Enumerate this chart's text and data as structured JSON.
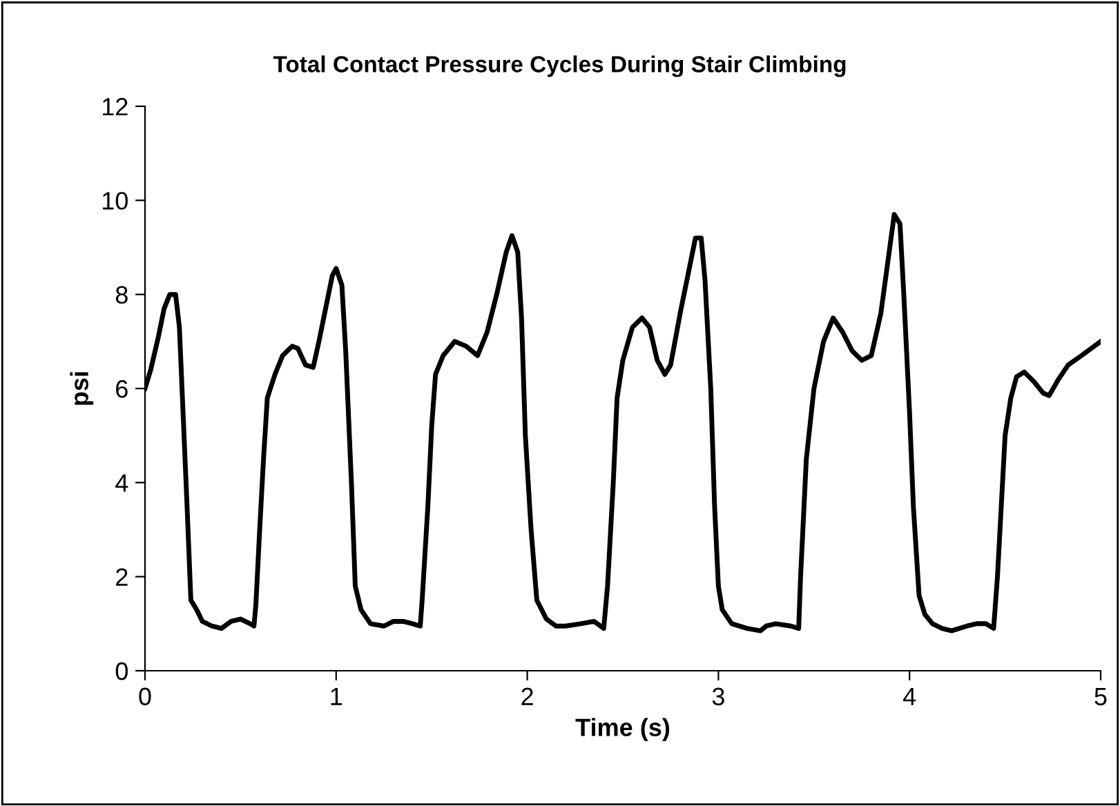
{
  "chart_data": {
    "type": "line",
    "title": "Total Contact Pressure Cycles During Stair Climbing",
    "xlabel": "Time (s)",
    "ylabel": "psi",
    "xlim": [
      0,
      5
    ],
    "xticks": [
      0,
      1,
      2,
      3,
      4,
      5
    ],
    "ylim": [
      0,
      12
    ],
    "yticks": [
      0,
      2,
      4,
      6,
      8,
      10,
      12
    ],
    "grid": false,
    "marker": "none",
    "line_style": "solid",
    "series": [
      {
        "color": "#000000",
        "x": [
          0,
          0.03,
          0.07,
          0.1,
          0.13,
          0.16,
          0.18,
          0.2,
          0.22,
          0.24,
          0.27,
          0.3,
          0.35,
          0.4,
          0.45,
          0.5,
          0.55,
          0.57,
          0.58,
          0.6,
          0.62,
          0.64,
          0.68,
          0.72,
          0.77,
          0.8,
          0.84,
          0.88,
          0.91,
          0.95,
          0.98,
          1.0,
          1.03,
          1.05,
          1.08,
          1.1,
          1.13,
          1.18,
          1.25,
          1.3,
          1.35,
          1.4,
          1.44,
          1.45,
          1.48,
          1.5,
          1.52,
          1.56,
          1.62,
          1.68,
          1.74,
          1.79,
          1.84,
          1.89,
          1.92,
          1.95,
          1.97,
          1.99,
          2.02,
          2.05,
          2.1,
          2.15,
          2.2,
          2.28,
          2.35,
          2.4,
          2.42,
          2.45,
          2.47,
          2.5,
          2.55,
          2.6,
          2.64,
          2.68,
          2.72,
          2.75,
          2.8,
          2.85,
          2.88,
          2.91,
          2.93,
          2.96,
          2.98,
          3.0,
          3.02,
          3.07,
          3.15,
          3.22,
          3.25,
          3.3,
          3.38,
          3.42,
          3.43,
          3.46,
          3.5,
          3.55,
          3.6,
          3.65,
          3.7,
          3.75,
          3.8,
          3.85,
          3.9,
          3.92,
          3.95,
          3.97,
          4.0,
          4.02,
          4.05,
          4.08,
          4.12,
          4.17,
          4.22,
          4.3,
          4.35,
          4.4,
          4.44,
          4.46,
          4.48,
          4.5,
          4.53,
          4.56,
          4.6,
          4.65,
          4.7,
          4.73,
          4.78,
          4.83,
          4.9,
          4.95,
          5.0
        ],
        "values": [
          6.0,
          6.4,
          7.1,
          7.7,
          8.0,
          8.0,
          7.3,
          5.4,
          3.5,
          1.5,
          1.3,
          1.05,
          0.95,
          0.9,
          1.05,
          1.1,
          1.0,
          0.95,
          1.4,
          3.0,
          4.5,
          5.8,
          6.3,
          6.7,
          6.9,
          6.85,
          6.5,
          6.45,
          7.0,
          7.8,
          8.4,
          8.55,
          8.2,
          6.8,
          4.0,
          1.8,
          1.3,
          1.0,
          0.95,
          1.05,
          1.05,
          1.0,
          0.95,
          1.5,
          3.5,
          5.2,
          6.3,
          6.7,
          7.0,
          6.9,
          6.7,
          7.2,
          8.0,
          8.9,
          9.25,
          8.9,
          7.5,
          5.0,
          3.0,
          1.5,
          1.1,
          0.95,
          0.95,
          1.0,
          1.05,
          0.9,
          1.8,
          4.0,
          5.8,
          6.6,
          7.3,
          7.5,
          7.3,
          6.6,
          6.3,
          6.5,
          7.6,
          8.6,
          9.2,
          9.2,
          8.3,
          6.0,
          3.5,
          1.8,
          1.3,
          1.0,
          0.9,
          0.85,
          0.95,
          1.0,
          0.95,
          0.9,
          2.0,
          4.5,
          6.0,
          7.0,
          7.5,
          7.2,
          6.8,
          6.6,
          6.7,
          7.6,
          9.1,
          9.7,
          9.5,
          8.0,
          5.5,
          3.5,
          1.6,
          1.2,
          1.0,
          0.9,
          0.85,
          0.95,
          1.0,
          1.0,
          0.9,
          2.0,
          3.5,
          5.0,
          5.8,
          6.25,
          6.35,
          6.15,
          5.9,
          5.85,
          6.2,
          6.5,
          6.7,
          6.85,
          7.0
        ]
      }
    ]
  }
}
